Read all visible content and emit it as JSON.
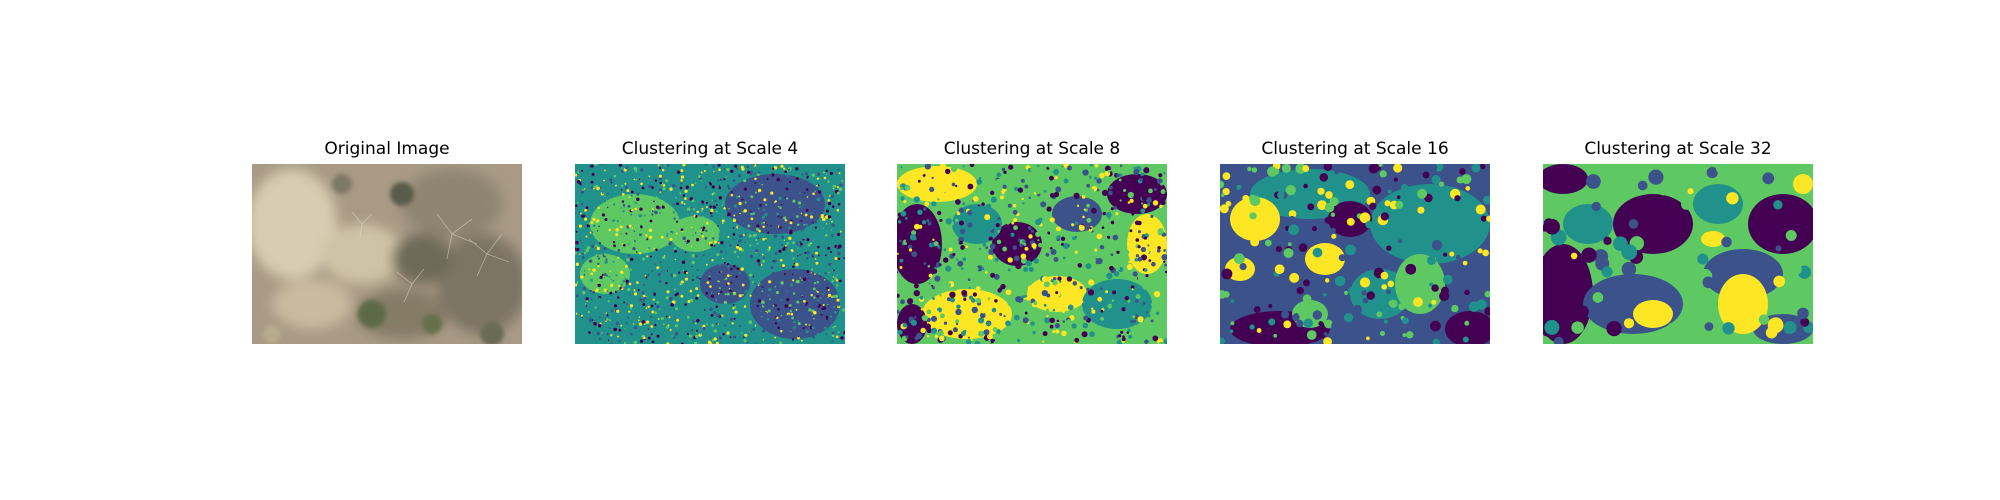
{
  "figure": {
    "panels": [
      {
        "title": "Original Image",
        "kind": "photo"
      },
      {
        "title": "Clustering at Scale 4",
        "kind": "cluster-map",
        "scale": 4
      },
      {
        "title": "Clustering at Scale 8",
        "kind": "cluster-map",
        "scale": 8
      },
      {
        "title": "Clustering at Scale 16",
        "kind": "cluster-map",
        "scale": 16
      },
      {
        "title": "Clustering at Scale 32",
        "kind": "cluster-map",
        "scale": 32
      }
    ],
    "palette": [
      "#440154",
      "#3b528b",
      "#21918c",
      "#5ec962",
      "#fde725"
    ]
  }
}
